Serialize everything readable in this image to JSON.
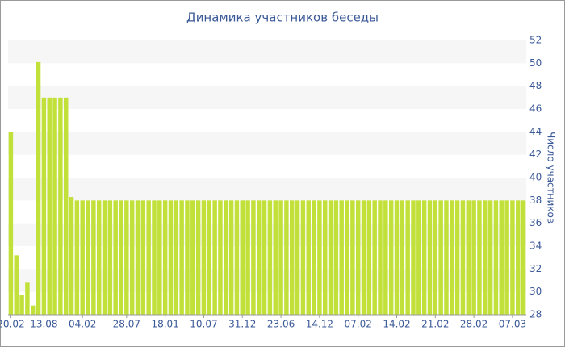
{
  "chart_data": {
    "type": "bar",
    "title": "Динамика участников беседы",
    "y_axis_label": "Число участников",
    "categories": [
      "20.02",
      null,
      null,
      null,
      null,
      null,
      "13.08",
      null,
      null,
      null,
      null,
      null,
      null,
      "04.02",
      null,
      null,
      null,
      null,
      null,
      null,
      null,
      "28.07",
      null,
      null,
      null,
      null,
      null,
      null,
      "18.01",
      null,
      null,
      null,
      null,
      null,
      null,
      "10.07",
      null,
      null,
      null,
      null,
      null,
      null,
      "31.12",
      null,
      null,
      null,
      null,
      null,
      null,
      "23.06",
      null,
      null,
      null,
      null,
      null,
      null,
      "14.12",
      null,
      null,
      null,
      null,
      null,
      null,
      "07.02",
      null,
      null,
      null,
      null,
      null,
      null,
      "14.02",
      null,
      null,
      null,
      null,
      null,
      null,
      "21.02",
      null,
      null,
      null,
      null,
      null,
      null,
      "28.02",
      null,
      null,
      null,
      null,
      null,
      null,
      "07.03",
      null,
      null
    ],
    "values": [
      44,
      33.2,
      29.7,
      30.8,
      28.8,
      50.1,
      47,
      47,
      47,
      47,
      47,
      38.3,
      38,
      38,
      38,
      38,
      38,
      38,
      38,
      38,
      38,
      38,
      38,
      38,
      38,
      38,
      38,
      38,
      38,
      38,
      38,
      38,
      38,
      38,
      38,
      38,
      38,
      38,
      38,
      38,
      38,
      38,
      38,
      38,
      38,
      38,
      38,
      38,
      38,
      38,
      38,
      38,
      38,
      38,
      38,
      38,
      38,
      38,
      38,
      38,
      38,
      38,
      38,
      38,
      38,
      38,
      38,
      38,
      38,
      38,
      38,
      38,
      38,
      38,
      38,
      38,
      38,
      38,
      38,
      38,
      38,
      38,
      38,
      38,
      38,
      38,
      38,
      38,
      38,
      38,
      38,
      38,
      38,
      38
    ],
    "color": "#c1e03a",
    "ylim": [
      28,
      52
    ],
    "yticks": [
      28,
      30,
      32,
      34,
      36,
      38,
      40,
      42,
      44,
      46,
      48,
      50,
      52
    ],
    "y_axis_side": "right",
    "grid": "bands"
  }
}
